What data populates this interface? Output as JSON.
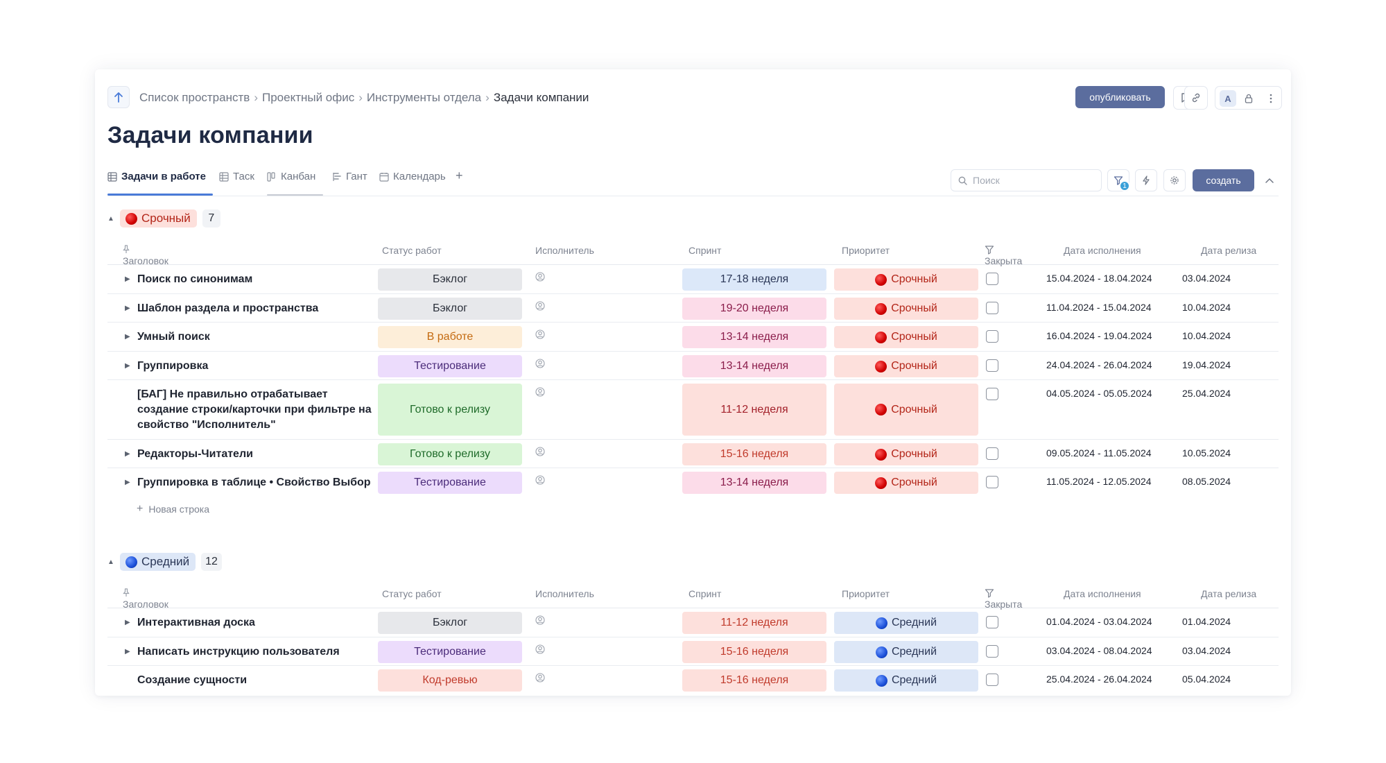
{
  "breadcrumbs": [
    "Список пространств",
    "Проектный офис",
    "Инструменты отдела",
    "Задачи компании"
  ],
  "toolbar": {
    "publish_label": "опубликовать",
    "avatar_letter": "A"
  },
  "page_title": "Задачи компании",
  "tabs": [
    {
      "label": "Задачи в работе",
      "icon": "table-icon",
      "active": true
    },
    {
      "label": "Таск",
      "icon": "table-icon"
    },
    {
      "label": "Канбан",
      "icon": "kanban-icon"
    },
    {
      "label": "Гант",
      "icon": "gantt-icon"
    },
    {
      "label": "Календарь",
      "icon": "calendar-icon"
    }
  ],
  "search": {
    "placeholder": "Поиск"
  },
  "filter_badge": "1",
  "create_label": "создать",
  "columns": {
    "title": "Заголовок",
    "status": "Статус работ",
    "assignee": "Исполнитель",
    "sprint": "Спринт",
    "priority": "Приоритет",
    "closed": "Закрыта",
    "due": "Дата исполнения",
    "release": "Дата релиза"
  },
  "colors": {
    "accent": "#5b6d9e",
    "tab_underline": "#4a7bd8",
    "badge": "#3aa0d8"
  },
  "groups": [
    {
      "label": "Срочный",
      "count": "7",
      "new_row_label": "Новая строка",
      "rows": [
        {
          "title": "Поиск по синонимам",
          "status": "Бэклог",
          "sprint": "17-18 неделя",
          "priority": "Срочный",
          "due": "15.04.2024 - 18.04.2024",
          "release": "03.04.2024"
        },
        {
          "title": "Шаблон раздела и пространства",
          "status": "Бэклог",
          "sprint": "19-20 неделя",
          "priority": "Срочный",
          "due": "11.04.2024 - 15.04.2024",
          "release": "10.04.2024"
        },
        {
          "title": "Умный поиск",
          "status": "В работе",
          "sprint": "13-14 неделя",
          "priority": "Срочный",
          "due": "16.04.2024 - 19.04.2024",
          "release": "10.04.2024"
        },
        {
          "title": "Группировка",
          "status": "Тестирование",
          "sprint": "13-14 неделя",
          "priority": "Срочный",
          "due": "24.04.2024 - 26.04.2024",
          "release": "19.04.2024"
        },
        {
          "title": "[БАГ] Не правильно отрабатывает создание строки/карточки при фильтре на свойство \"Исполнитель\"",
          "status": "Готово к релизу",
          "sprint": "11-12 неделя",
          "priority": "Срочный",
          "due": "04.05.2024 - 05.05.2024",
          "release": "25.04.2024"
        },
        {
          "title": "Редакторы-Читатели",
          "status": "Готово к релизу",
          "sprint": "15-16 неделя",
          "priority": "Срочный",
          "due": "09.05.2024 - 11.05.2024",
          "release": "10.05.2024"
        },
        {
          "title": "Группировка в таблице • Свойство Выбор",
          "status": "Тестирование",
          "sprint": "13-14 неделя",
          "priority": "Срочный",
          "due": "11.05.2024 - 12.05.2024",
          "release": "08.05.2024"
        }
      ]
    },
    {
      "label": "Средний",
      "count": "12",
      "rows": [
        {
          "title": "Интерактивная доска",
          "status": "Бэклог",
          "sprint": "11-12 неделя",
          "priority": "Средний",
          "due": "01.04.2024 - 03.04.2024",
          "release": "01.04.2024"
        },
        {
          "title": "Написать инструкцию пользователя",
          "status": "Тестирование",
          "sprint": "15-16 неделя",
          "priority": "Средний",
          "due": "03.04.2024 - 08.04.2024",
          "release": "03.04.2024"
        },
        {
          "title": "Создание сущности",
          "status": "Код-ревью",
          "sprint": "15-16 неделя",
          "priority": "Средний",
          "due": "25.04.2024 - 26.04.2024",
          "release": "05.04.2024"
        }
      ]
    }
  ]
}
